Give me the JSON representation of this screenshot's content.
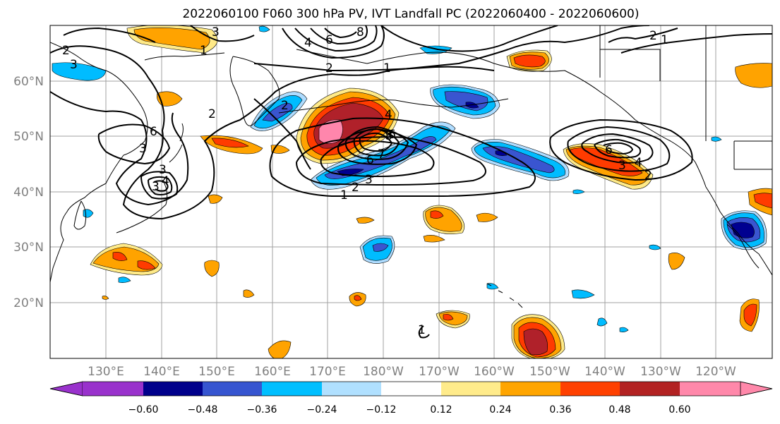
{
  "title": "2022060100 F060 300 hPa PV, IVT Landfall PC (2022060400 - 2022060600)",
  "map": {
    "lon_labels": [
      "130°E",
      "140°E",
      "150°E",
      "160°E",
      "170°E",
      "180°W",
      "170°W",
      "160°W",
      "150°W",
      "140°W",
      "130°W",
      "120°W"
    ],
    "lat_labels": [
      "60°N",
      "50°N",
      "40°N",
      "30°N",
      "20°N"
    ],
    "contour_labels": [
      "3",
      "1",
      "2",
      "3",
      "8",
      "6",
      "4",
      "2",
      "3",
      "3",
      "2",
      "3",
      "4",
      "6",
      "1",
      "2",
      "1",
      "2",
      "4",
      "8",
      "6",
      "7",
      "6",
      "3",
      "1",
      "2",
      "6",
      "3",
      "4",
      "2",
      "1"
    ],
    "contour_levels": [
      1,
      2,
      3,
      4,
      5,
      6,
      7,
      8,
      9
    ],
    "shading_positive_colors": [
      "#fee986",
      "#ffa300",
      "#ff3b00",
      "#b0212a",
      "#ff86ac"
    ],
    "shading_negative_colors": [
      "#aedcff",
      "#00bcff",
      "#3a55d0",
      "#000090",
      "#9030d0"
    ]
  },
  "colorbar": {
    "ticks": [
      "−0.60",
      "−0.48",
      "−0.36",
      "−0.24",
      "−0.12",
      "0.12",
      "0.24",
      "0.36",
      "0.48",
      "0.60"
    ],
    "colors": [
      "#9932cc",
      "#00008b",
      "#3655d0",
      "#00bfff",
      "#b0e0ff",
      "#ffffff",
      "#ffeb8b",
      "#ffa500",
      "#ff4000",
      "#b22222",
      "#ff88aa"
    ]
  }
}
